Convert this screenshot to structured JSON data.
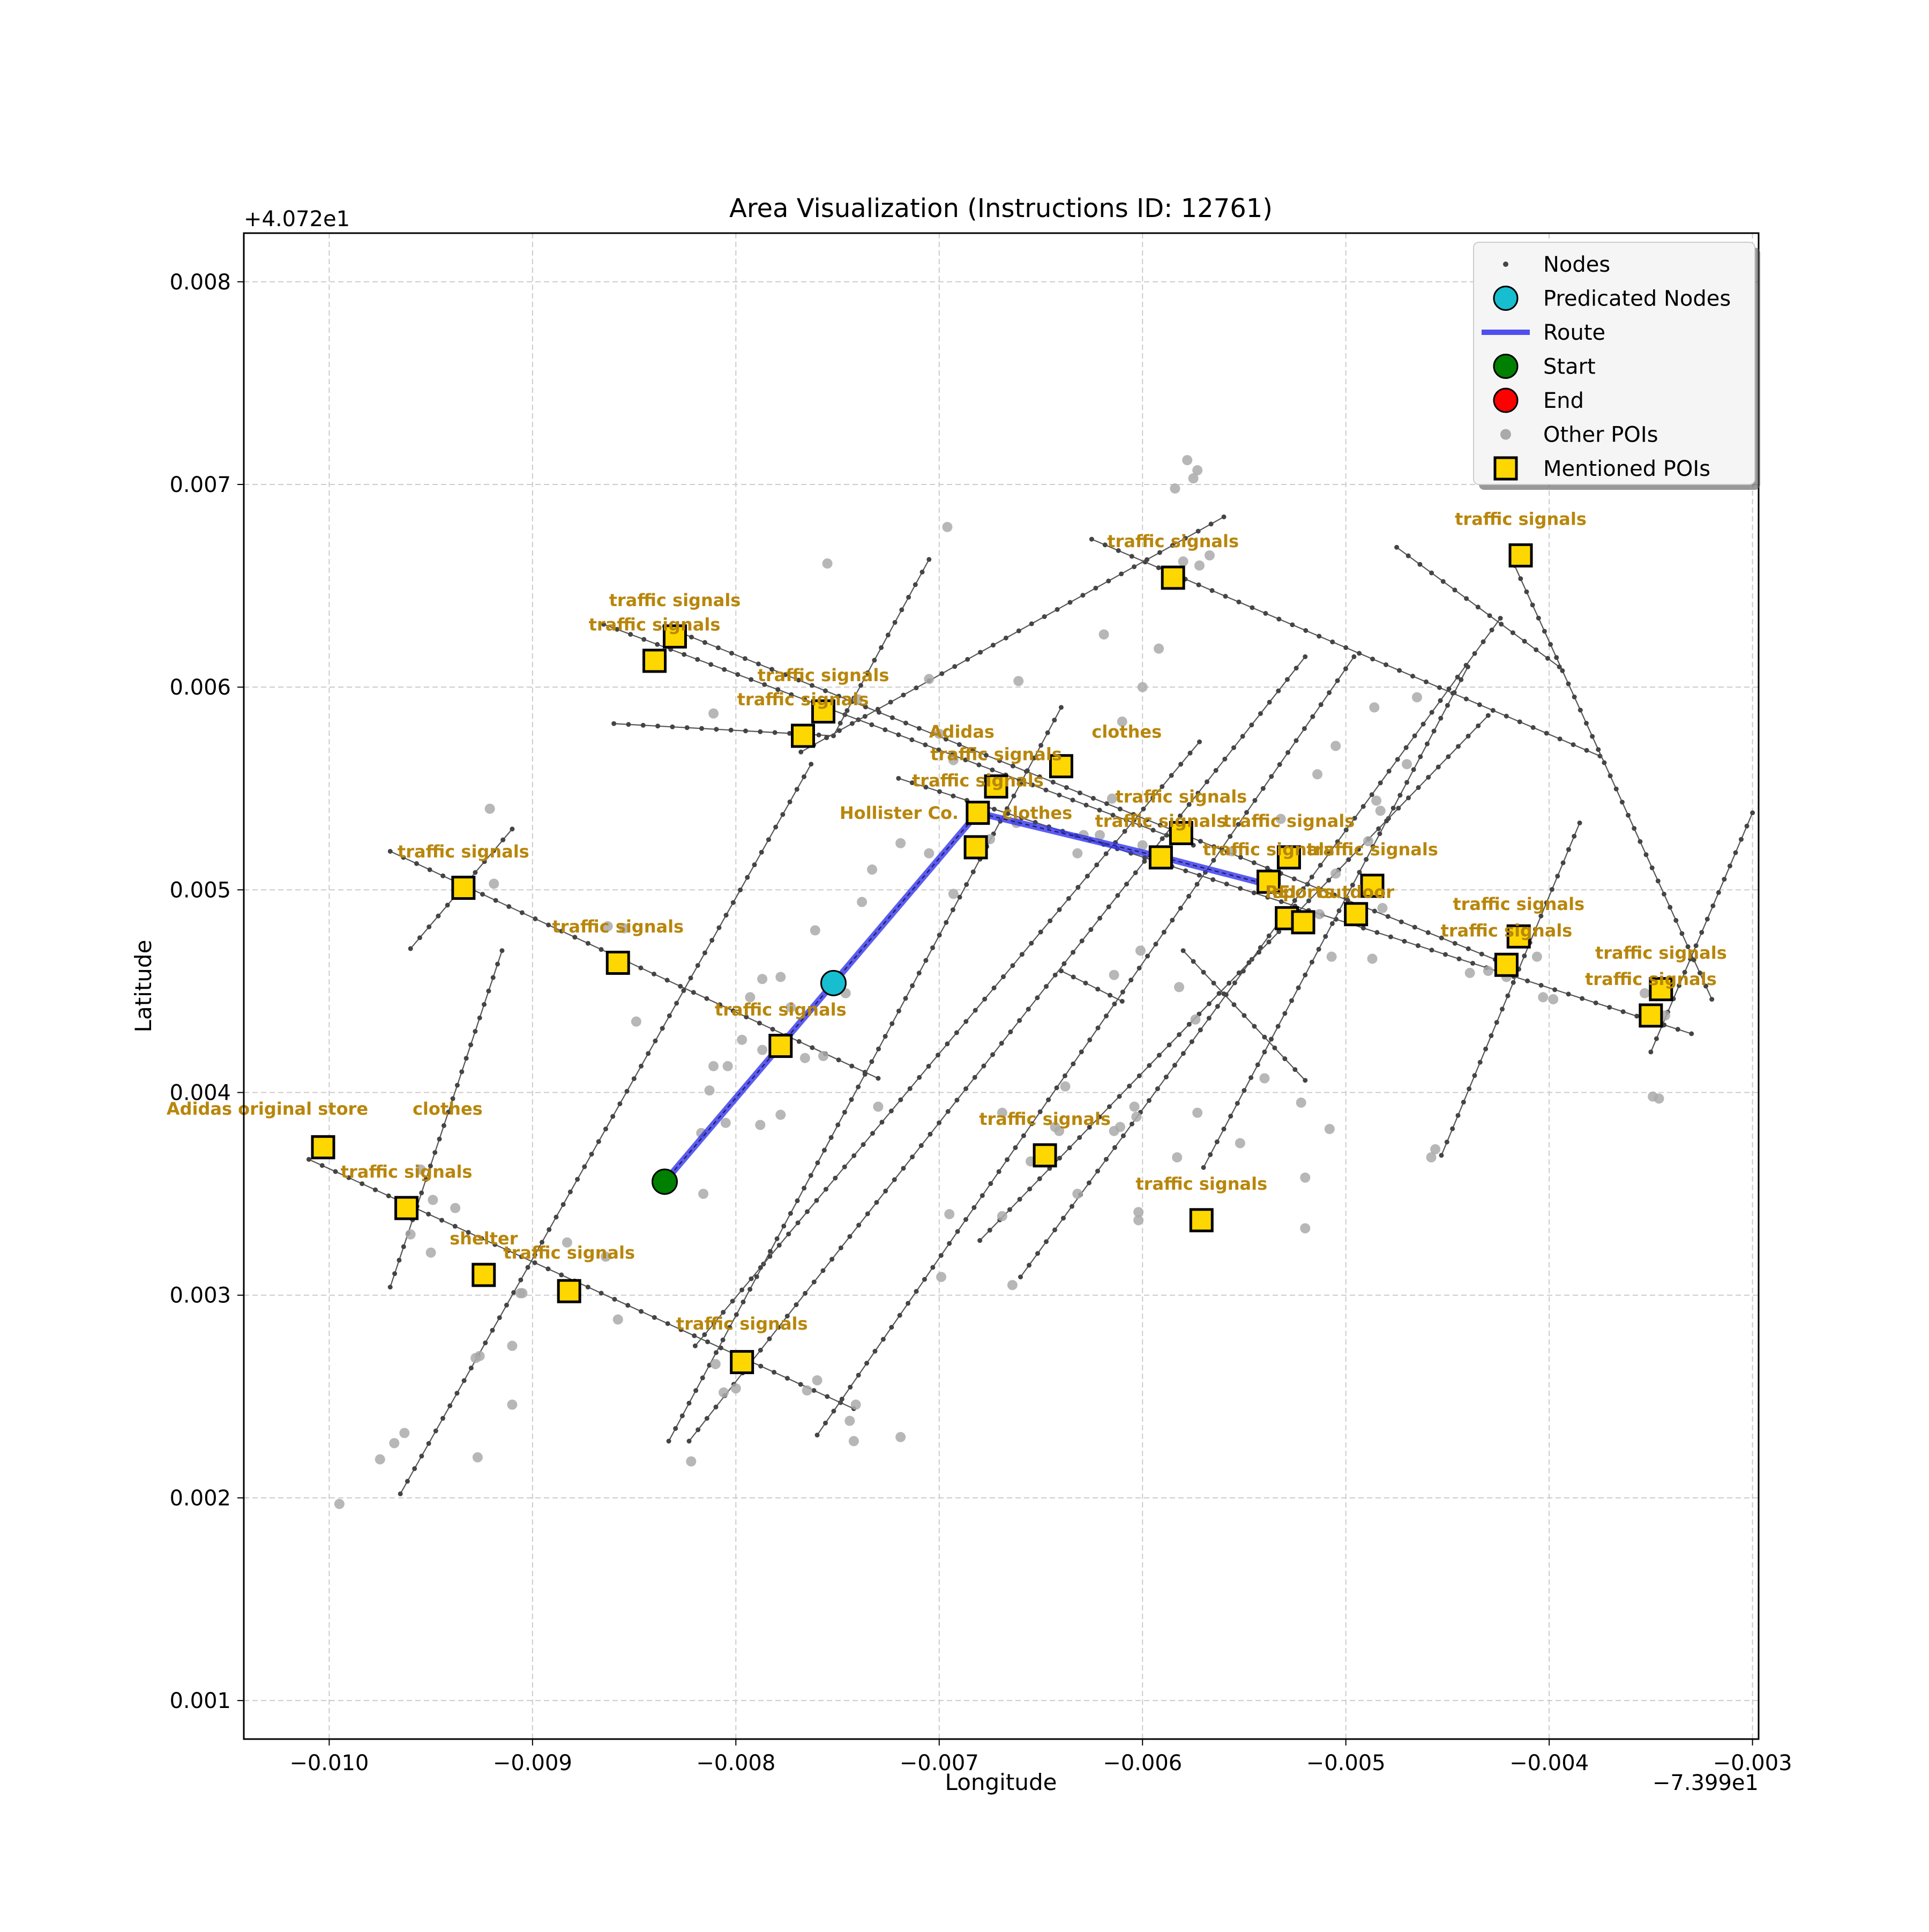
{
  "chart_data": {
    "type": "scatter",
    "title": "Area Visualization (Instructions ID: 12761)",
    "xlabel": "Longitude",
    "ylabel": "Latitude",
    "x_offset_text": "−7.399e1",
    "y_offset_text": "+4.072e1",
    "xlim": [
      -0.01042,
      -0.00297
    ],
    "ylim": [
      0.00081,
      0.00824
    ],
    "x_ticks": [
      -0.01,
      -0.009,
      -0.008,
      -0.007,
      -0.006,
      -0.005,
      -0.004,
      -0.003
    ],
    "x_tick_labels": [
      "−0.010",
      "−0.009",
      "−0.008",
      "−0.007",
      "−0.006",
      "−0.005",
      "−0.004",
      "−0.003"
    ],
    "y_ticks": [
      0.001,
      0.002,
      0.003,
      0.004,
      0.005,
      0.006,
      0.007,
      0.008
    ],
    "y_tick_labels": [
      "0.001",
      "0.002",
      "0.003",
      "0.004",
      "0.005",
      "0.006",
      "0.007",
      "0.008"
    ],
    "grid": true,
    "legend_position": "top-right",
    "legend": [
      {
        "label": "Nodes",
        "marker": "small-dot",
        "color": "#444444"
      },
      {
        "label": "Predicated Nodes",
        "marker": "circle",
        "color": "#17becf"
      },
      {
        "label": "Route",
        "marker": "line",
        "color": "#3333ee"
      },
      {
        "label": "Start",
        "marker": "circle",
        "color": "#008000"
      },
      {
        "label": "End",
        "marker": "circle",
        "color": "#ff0000"
      },
      {
        "label": "Other POIs",
        "marker": "dot",
        "color": "#aaaaaa"
      },
      {
        "label": "Mentioned POIs",
        "marker": "square",
        "color": "#ffd700"
      }
    ],
    "colors": {
      "nodes": "#444444",
      "street": "#555555",
      "route": "#3333ee",
      "start": "#008000",
      "predicted": "#17becf",
      "other_poi": "#aaaaaa",
      "mentioned_poi": "#ffd700",
      "poi_label": "#b8860b",
      "grid": "#cccccc"
    },
    "streets": [
      [
        [
          -0.0101,
          0.00367
        ],
        [
          -0.00742,
          0.00244
        ]
      ],
      [
        [
          -0.0097,
          0.00519
        ],
        [
          -0.0073,
          0.00407
        ]
      ],
      [
        [
          -0.00865,
          0.00631
        ],
        [
          -0.00575,
          0.00522
        ]
      ],
      [
        [
          -0.00835,
          0.0063
        ],
        [
          -0.0042,
          0.00463
        ]
      ],
      [
        [
          -0.0072,
          0.00555
        ],
        [
          -0.0033,
          0.00429
        ]
      ],
      [
        [
          -0.00625,
          0.00673
        ],
        [
          -0.00375,
          0.00566
        ]
      ],
      [
        [
          -0.00417,
          0.0066
        ],
        [
          -0.0032,
          0.00446
        ]
      ],
      [
        [
          -0.00475,
          0.00669
        ],
        [
          -0.00395,
          0.0061
        ]
      ],
      [
        [
          -0.0064,
          0.0046
        ],
        [
          -0.0061,
          0.00445
        ]
      ],
      [
        [
          -0.0058,
          0.0047
        ],
        [
          -0.0052,
          0.00406
        ]
      ],
      [
        [
          -0.0097,
          0.00304
        ],
        [
          -0.00915,
          0.0047
        ]
      ],
      [
        [
          -0.0096,
          0.00471
        ],
        [
          -0.0091,
          0.0053
        ]
      ],
      [
        [
          -0.00965,
          0.00202
        ],
        [
          -0.00763,
          0.00562
        ]
      ],
      [
        [
          -0.0086,
          0.00582
        ],
        [
          -0.00752,
          0.00576
        ]
      ],
      [
        [
          -0.00752,
          0.00576
        ],
        [
          -0.00705,
          0.00663
        ]
      ],
      [
        [
          -0.00833,
          0.00228
        ],
        [
          -0.0064,
          0.0059
        ]
      ],
      [
        [
          -0.00823,
          0.00228
        ],
        [
          -0.0052,
          0.00615
        ]
      ],
      [
        [
          -0.0082,
          0.00275
        ],
        [
          -0.00572,
          0.00573
        ]
      ],
      [
        [
          -0.00768,
          0.00568
        ],
        [
          -0.0056,
          0.00684
        ]
      ],
      [
        [
          -0.0076,
          0.00231
        ],
        [
          -0.00496,
          0.00615
        ]
      ],
      [
        [
          -0.0066,
          0.00309
        ],
        [
          -0.00424,
          0.00634
        ]
      ],
      [
        [
          -0.0068,
          0.00327
        ],
        [
          -0.0043,
          0.00586
        ]
      ],
      [
        [
          -0.0057,
          0.00363
        ],
        [
          -0.0044,
          0.0061
        ]
      ],
      [
        [
          -0.00453,
          0.00369
        ],
        [
          -0.00385,
          0.00533
        ]
      ],
      [
        [
          -0.0035,
          0.0042
        ],
        [
          -0.003,
          0.00538
        ]
      ]
    ],
    "route": [
      [
        -0.00835,
        0.00356
      ],
      [
        -0.00752,
        0.00454
      ],
      [
        -0.00681,
        0.00538
      ],
      [
        -0.0059,
        0.00516
      ],
      [
        -0.0054,
        0.00503
      ]
    ],
    "start": [
      -0.00835,
      0.00356
    ],
    "end": [],
    "predicted_nodes": [
      [
        -0.00752,
        0.00454
      ]
    ],
    "other_pois": [
      [
        -0.00995,
        0.00197
      ],
      [
        -0.00975,
        0.00219
      ],
      [
        -0.00968,
        0.00227
      ],
      [
        -0.00963,
        0.00232
      ],
      [
        -0.00928,
        0.00269
      ],
      [
        -0.00926,
        0.0027
      ],
      [
        -0.0091,
        0.00275
      ],
      [
        -0.0091,
        0.00246
      ],
      [
        -0.00927,
        0.0022
      ],
      [
        -0.0096,
        0.0033
      ],
      [
        -0.00955,
        0.00362
      ],
      [
        -0.00949,
        0.00347
      ],
      [
        -0.00938,
        0.00343
      ],
      [
        -0.0095,
        0.00321
      ],
      [
        -0.00905,
        0.00301
      ],
      [
        -0.00906,
        0.00301
      ],
      [
        -0.00858,
        0.00288
      ],
      [
        -0.00864,
        0.00319
      ],
      [
        -0.00883,
        0.00326
      ],
      [
        -0.00861,
        0.00466
      ],
      [
        -0.00863,
        0.00482
      ],
      [
        -0.00855,
        0.00481
      ],
      [
        -0.00849,
        0.00435
      ],
      [
        -0.00919,
        0.00503
      ],
      [
        -0.00921,
        0.0054
      ],
      [
        -0.00838,
        0.00358
      ],
      [
        -0.00816,
        0.0035
      ],
      [
        -0.00822,
        0.00218
      ],
      [
        -0.0081,
        0.00266
      ],
      [
        -0.008,
        0.00254
      ],
      [
        -0.00806,
        0.00252
      ],
      [
        -0.0076,
        0.00258
      ],
      [
        -0.00765,
        0.00253
      ],
      [
        -0.00744,
        0.00238
      ],
      [
        -0.00742,
        0.00228
      ],
      [
        -0.00741,
        0.00246
      ],
      [
        -0.00719,
        0.0023
      ],
      [
        -0.00699,
        0.00309
      ],
      [
        -0.00664,
        0.00305
      ],
      [
        -0.00669,
        0.00339
      ],
      [
        -0.00655,
        0.00366
      ],
      [
        -0.00614,
        0.00381
      ],
      [
        -0.00603,
        0.00388
      ],
      [
        -0.00602,
        0.00341
      ],
      [
        -0.00602,
        0.00337
      ],
      [
        -0.00552,
        0.00375
      ],
      [
        -0.0052,
        0.00358
      ],
      [
        -0.0052,
        0.00333
      ],
      [
        -0.00522,
        0.00395
      ],
      [
        -0.00508,
        0.00382
      ],
      [
        -0.00458,
        0.00368
      ],
      [
        -0.00456,
        0.00372
      ],
      [
        -0.00349,
        0.00398
      ],
      [
        -0.00346,
        0.00397
      ],
      [
        -0.00403,
        0.00447
      ],
      [
        -0.00439,
        0.00459
      ],
      [
        -0.00641,
        0.00381
      ],
      [
        -0.00638,
        0.00403
      ],
      [
        -0.00669,
        0.0039
      ],
      [
        -0.00643,
        0.00383
      ],
      [
        -0.00632,
        0.0035
      ],
      [
        -0.00695,
        0.0034
      ],
      [
        -0.00604,
        0.00393
      ],
      [
        -0.00611,
        0.00383
      ],
      [
        -0.00813,
        0.00401
      ],
      [
        -0.00817,
        0.0038
      ],
      [
        -0.00805,
        0.00385
      ],
      [
        -0.00787,
        0.00421
      ],
      [
        -0.00797,
        0.00426
      ],
      [
        -0.00804,
        0.00413
      ],
      [
        -0.00811,
        0.00413
      ],
      [
        -0.00793,
        0.00447
      ],
      [
        -0.00787,
        0.00456
      ],
      [
        -0.00778,
        0.00457
      ],
      [
        -0.00773,
        0.00442
      ],
      [
        -0.00778,
        0.00389
      ],
      [
        -0.00788,
        0.00384
      ],
      [
        -0.00766,
        0.00417
      ],
      [
        -0.00757,
        0.00418
      ],
      [
        -0.0073,
        0.00393
      ],
      [
        -0.00761,
        0.0048
      ],
      [
        -0.00746,
        0.00449
      ],
      [
        -0.00738,
        0.00494
      ],
      [
        -0.00733,
        0.0051
      ],
      [
        -0.00705,
        0.00518
      ],
      [
        -0.00719,
        0.00523
      ],
      [
        -0.00693,
        0.00498
      ],
      [
        -0.00675,
        0.00525
      ],
      [
        -0.0074,
        0.00594
      ],
      [
        -0.007,
        0.00577
      ],
      [
        -0.00693,
        0.00564
      ],
      [
        -0.00705,
        0.00604
      ],
      [
        -0.00811,
        0.00587
      ],
      [
        -0.00755,
        0.00661
      ],
      [
        -0.00696,
        0.00679
      ],
      [
        -0.00661,
        0.00603
      ],
      [
        -0.00662,
        0.00533
      ],
      [
        -0.00632,
        0.00518
      ],
      [
        -0.00615,
        0.00545
      ],
      [
        -0.006,
        0.00522
      ],
      [
        -0.0061,
        0.00583
      ],
      [
        -0.00592,
        0.00619
      ],
      [
        -0.006,
        0.006
      ],
      [
        -0.00629,
        0.00527
      ],
      [
        -0.00619,
        0.00626
      ],
      [
        -0.0058,
        0.00662
      ],
      [
        -0.00572,
        0.0066
      ],
      [
        -0.00573,
        0.00707
      ],
      [
        -0.00575,
        0.00703
      ],
      [
        -0.00584,
        0.00698
      ],
      [
        -0.00578,
        0.00712
      ],
      [
        -0.00567,
        0.00665
      ],
      [
        -0.00621,
        0.00527
      ],
      [
        -0.00556,
        0.00519
      ],
      [
        -0.00532,
        0.00535
      ],
      [
        -0.00507,
        0.00467
      ],
      [
        -0.00505,
        0.00508
      ],
      [
        -0.00485,
        0.00544
      ],
      [
        -0.00483,
        0.00539
      ],
      [
        -0.00489,
        0.00524
      ],
      [
        -0.00486,
        0.0059
      ],
      [
        -0.0047,
        0.00562
      ],
      [
        -0.00465,
        0.00595
      ],
      [
        -0.00514,
        0.00557
      ],
      [
        -0.00505,
        0.00571
      ],
      [
        -0.00482,
        0.00491
      ],
      [
        -0.00513,
        0.00488
      ],
      [
        -0.00487,
        0.00466
      ],
      [
        -0.00614,
        0.00458
      ],
      [
        -0.00582,
        0.00452
      ],
      [
        -0.00574,
        0.00436
      ],
      [
        -0.00601,
        0.0047
      ],
      [
        -0.0054,
        0.00407
      ],
      [
        -0.00573,
        0.0039
      ],
      [
        -0.00583,
        0.00368
      ],
      [
        -0.0043,
        0.0046
      ],
      [
        -0.00421,
        0.00457
      ],
      [
        -0.00406,
        0.00467
      ],
      [
        -0.00398,
        0.00446
      ],
      [
        -0.00424,
        0.00463
      ],
      [
        -0.00353,
        0.00449
      ],
      [
        -0.00343,
        0.00438
      ]
    ],
    "mentioned_pois": [
      {
        "x": -0.01003,
        "y": 0.00373,
        "label": "Adidas original store",
        "lx": -0.0108,
        "ly": 0.00389,
        "anchor": "start"
      },
      {
        "x": -0.01003,
        "y": 0.00373,
        "label": "clothes",
        "lx": -0.00959,
        "ly": 0.00389,
        "anchor": "start"
      },
      {
        "x": -0.00962,
        "y": 0.00343,
        "label": "traffic signals",
        "lx": -0.00962,
        "ly": 0.00358,
        "anchor": "middle"
      },
      {
        "x": -0.00924,
        "y": 0.0031,
        "label": "shelter",
        "lx": -0.00924,
        "ly": 0.00325,
        "anchor": "middle"
      },
      {
        "x": -0.00882,
        "y": 0.00302,
        "label": "traffic signals",
        "lx": -0.00882,
        "ly": 0.00318,
        "anchor": "middle"
      },
      {
        "x": -0.00797,
        "y": 0.00267,
        "label": "traffic signals",
        "lx": -0.00797,
        "ly": 0.00283,
        "anchor": "middle"
      },
      {
        "x": -0.00934,
        "y": 0.00501,
        "label": "traffic signals",
        "lx": -0.00934,
        "ly": 0.00516,
        "anchor": "middle"
      },
      {
        "x": -0.00858,
        "y": 0.00464,
        "label": "traffic signals",
        "lx": -0.00858,
        "ly": 0.00479,
        "anchor": "middle"
      },
      {
        "x": -0.00778,
        "y": 0.00423,
        "label": "traffic signals",
        "lx": -0.00778,
        "ly": 0.00438,
        "anchor": "middle"
      },
      {
        "x": -0.00648,
        "y": 0.00369,
        "label": "traffic signals",
        "lx": -0.00648,
        "ly": 0.00384,
        "anchor": "middle"
      },
      {
        "x": -0.00571,
        "y": 0.00337,
        "label": "traffic signals",
        "lx": -0.00571,
        "ly": 0.00352,
        "anchor": "middle"
      },
      {
        "x": -0.0083,
        "y": 0.00625,
        "label": "traffic signals",
        "lx": -0.0083,
        "ly": 0.0064,
        "anchor": "middle"
      },
      {
        "x": -0.0084,
        "y": 0.00613,
        "label": "traffic signals",
        "lx": -0.0084,
        "ly": 0.00628,
        "anchor": "middle"
      },
      {
        "x": -0.00757,
        "y": 0.00588,
        "label": "traffic signals",
        "lx": -0.00757,
        "ly": 0.00603,
        "anchor": "middle"
      },
      {
        "x": -0.00767,
        "y": 0.00576,
        "label": "traffic signals",
        "lx": -0.00767,
        "ly": 0.00591,
        "anchor": "middle"
      },
      {
        "x": -0.0064,
        "y": 0.00561,
        "label": "Adidas",
        "lx": -0.00705,
        "ly": 0.00575,
        "anchor": "start"
      },
      {
        "x": -0.0064,
        "y": 0.00561,
        "label": "clothes",
        "lx": -0.00625,
        "ly": 0.00575,
        "anchor": "start"
      },
      {
        "x": -0.00672,
        "y": 0.00551,
        "label": "traffic signals",
        "lx": -0.00672,
        "ly": 0.00564,
        "anchor": "middle"
      },
      {
        "x": -0.00681,
        "y": 0.00538,
        "label": "traffic signals",
        "lx": -0.00681,
        "ly": 0.00551,
        "anchor": "middle"
      },
      {
        "x": -0.00682,
        "y": 0.00521,
        "label": "Hollister Co.",
        "lx": -0.00749,
        "ly": 0.00535,
        "anchor": "start"
      },
      {
        "x": -0.00682,
        "y": 0.00521,
        "label": "clothes",
        "lx": -0.00669,
        "ly": 0.00535,
        "anchor": "start"
      },
      {
        "x": -0.00585,
        "y": 0.00654,
        "label": "traffic signals",
        "lx": -0.00585,
        "ly": 0.00669,
        "anchor": "middle"
      },
      {
        "x": -0.00581,
        "y": 0.00528,
        "label": "traffic signals",
        "lx": -0.00581,
        "ly": 0.00543,
        "anchor": "middle"
      },
      {
        "x": -0.00591,
        "y": 0.00516,
        "label": "traffic signals",
        "lx": -0.00591,
        "ly": 0.00531,
        "anchor": "middle"
      },
      {
        "x": -0.00528,
        "y": 0.00516,
        "label": "traffic signals",
        "lx": -0.00528,
        "ly": 0.00531,
        "anchor": "middle"
      },
      {
        "x": -0.00538,
        "y": 0.00504,
        "label": "traffic signals",
        "lx": -0.00538,
        "ly": 0.00517,
        "anchor": "middle"
      },
      {
        "x": -0.00487,
        "y": 0.00502,
        "label": "traffic signals",
        "lx": -0.00487,
        "ly": 0.00517,
        "anchor": "middle"
      },
      {
        "x": -0.00529,
        "y": 0.00486,
        "label": "REI",
        "lx": -0.00532,
        "ly": 0.00496,
        "anchor": "middle"
      },
      {
        "x": -0.00521,
        "y": 0.00484,
        "label": "sports",
        "lx": -0.00521,
        "ly": 0.00496,
        "anchor": "middle"
      },
      {
        "x": -0.00495,
        "y": 0.00488,
        "label": "outdoor",
        "lx": -0.00495,
        "ly": 0.00496,
        "anchor": "middle"
      },
      {
        "x": -0.00414,
        "y": 0.00665,
        "label": "traffic signals",
        "lx": -0.00414,
        "ly": 0.0068,
        "anchor": "middle"
      },
      {
        "x": -0.00415,
        "y": 0.00477,
        "label": "traffic signals",
        "lx": -0.00415,
        "ly": 0.0049,
        "anchor": "middle"
      },
      {
        "x": -0.00421,
        "y": 0.00463,
        "label": "traffic signals",
        "lx": -0.00421,
        "ly": 0.00477,
        "anchor": "middle"
      },
      {
        "x": -0.00345,
        "y": 0.00451,
        "label": "traffic signals",
        "lx": -0.00345,
        "ly": 0.00466,
        "anchor": "middle"
      },
      {
        "x": -0.0035,
        "y": 0.00438,
        "label": "traffic signals",
        "lx": -0.0035,
        "ly": 0.00453,
        "anchor": "middle"
      }
    ]
  }
}
